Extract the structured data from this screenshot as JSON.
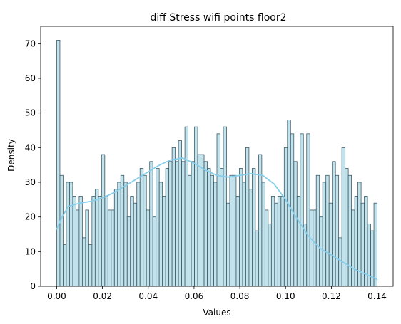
{
  "chart_data": {
    "type": "bar",
    "subtype": "histogram-with-kde",
    "title": "diff Stress wifi points floor2",
    "xlabel": "Values",
    "ylabel": "Density",
    "xlim": [
      -0.007,
      0.147
    ],
    "ylim": [
      0,
      75
    ],
    "xticks": [
      0.0,
      0.02,
      0.04,
      0.06,
      0.08,
      0.1,
      0.12,
      0.14
    ],
    "xtick_labels": [
      "0.00",
      "0.02",
      "0.04",
      "0.06",
      "0.08",
      "0.10",
      "0.12",
      "0.14"
    ],
    "yticks": [
      0,
      10,
      20,
      30,
      40,
      50,
      60,
      70
    ],
    "ytick_labels": [
      "0",
      "10",
      "20",
      "30",
      "40",
      "50",
      "60",
      "70"
    ],
    "grid": false,
    "bins": {
      "start": 0.0,
      "end": 0.14,
      "count": 100
    },
    "counts": [
      71,
      32,
      12,
      30,
      30,
      26,
      22,
      26,
      14,
      22,
      12,
      26,
      28,
      26,
      38,
      26,
      22,
      22,
      28,
      30,
      32,
      30,
      20,
      26,
      24,
      30,
      34,
      32,
      22,
      36,
      20,
      34,
      30,
      26,
      34,
      36,
      40,
      36,
      42,
      36,
      46,
      32,
      36,
      46,
      38,
      38,
      36,
      34,
      32,
      30,
      44,
      34,
      46,
      24,
      32,
      32,
      26,
      34,
      30,
      40,
      28,
      34,
      16,
      38,
      30,
      22,
      18,
      26,
      24,
      26,
      26,
      40,
      48,
      44,
      36,
      26,
      44,
      18,
      44,
      22,
      22,
      32,
      20,
      30,
      32,
      24,
      36,
      32,
      14,
      40,
      34,
      32,
      22,
      26,
      30,
      24,
      26,
      18,
      16,
      24
    ],
    "kde": {
      "x": [
        0.0,
        0.002,
        0.005,
        0.01,
        0.015,
        0.02,
        0.025,
        0.03,
        0.035,
        0.04,
        0.045,
        0.05,
        0.055,
        0.06,
        0.065,
        0.07,
        0.075,
        0.08,
        0.085,
        0.09,
        0.095,
        0.1,
        0.105,
        0.11,
        0.115,
        0.12,
        0.125,
        0.13,
        0.135,
        0.14
      ],
      "y": [
        16.5,
        19.5,
        23.0,
        24.0,
        24.5,
        25.5,
        27.0,
        29.0,
        31.0,
        33.0,
        35.0,
        36.5,
        37.0,
        35.5,
        33.5,
        32.0,
        31.5,
        32.0,
        32.5,
        32.0,
        29.5,
        25.0,
        19.5,
        14.5,
        11.0,
        9.0,
        7.0,
        5.0,
        3.5,
        2.0
      ]
    },
    "colors": {
      "bar_fill": "#add8e6",
      "bar_edge": "#3d5a66",
      "kde_line": "#87ceeb",
      "axis": "#000000"
    }
  }
}
